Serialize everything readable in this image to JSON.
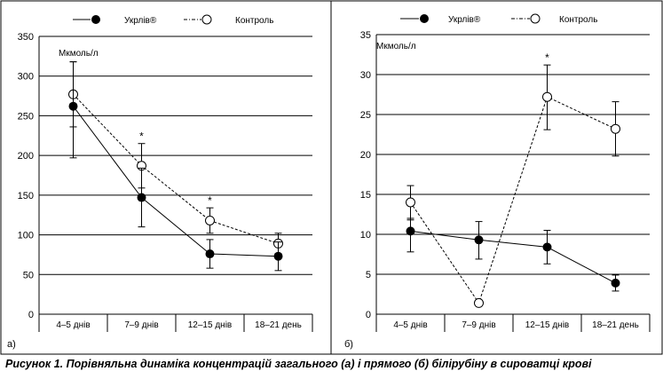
{
  "caption": "Рисунок 1. Порівняльна динаміка концентрацій загального (а) і прямого (б) білірубіну в сироватці крові",
  "legend": {
    "series1": "Укрлів®",
    "series2": "Контроль"
  },
  "chart_data": [
    {
      "type": "line",
      "panel_label": "а)",
      "unit_label": "Мкмоль/л",
      "categories": [
        "4–5 днів",
        "7–9 днів",
        "12–15 днів",
        "18–21 день"
      ],
      "ylim": [
        0,
        350
      ],
      "yticks": [
        0,
        50,
        100,
        150,
        200,
        250,
        300,
        350
      ],
      "grid": true,
      "legend_position": "top",
      "series": [
        {
          "name": "Укрлів®",
          "marker": "filled",
          "line": "solid",
          "values": [
            262,
            147,
            76,
            73
          ],
          "err_low": [
            197,
            110,
            58,
            55
          ],
          "err_high": [
            318,
            184,
            94,
            91
          ]
        },
        {
          "name": "Контроль",
          "marker": "open",
          "line": "dashed",
          "values": [
            277,
            187,
            118,
            89
          ],
          "err_low": [
            236,
            159,
            102,
            76
          ],
          "err_high": [
            318,
            215,
            134,
            102
          ]
        }
      ],
      "significance": [
        {
          "category_index": 1,
          "value": 215,
          "label": "*"
        },
        {
          "category_index": 2,
          "value": 134,
          "label": "*"
        }
      ]
    },
    {
      "type": "line",
      "panel_label": "б)",
      "unit_label": "Мкмоль/л",
      "categories": [
        "4–5 днів",
        "7–9 днів",
        "12–15 днів",
        "18–21 день"
      ],
      "ylim": [
        0,
        35
      ],
      "yticks": [
        0,
        5,
        10,
        15,
        20,
        25,
        30,
        35
      ],
      "grid": true,
      "legend_position": "top",
      "series": [
        {
          "name": "Укрлів®",
          "marker": "filled",
          "line": "solid",
          "values": [
            10.4,
            9.3,
            8.4,
            3.9
          ],
          "err_low": [
            7.8,
            6.9,
            6.3,
            2.9
          ],
          "err_high": [
            12.0,
            11.6,
            10.5,
            4.9
          ]
        },
        {
          "name": "Контроль",
          "marker": "open",
          "line": "dashed",
          "values": [
            14.0,
            1.4,
            27.2,
            23.2
          ],
          "err_low": [
            11.8,
            null,
            23.1,
            19.8
          ],
          "err_high": [
            16.1,
            null,
            31.2,
            26.6
          ]
        }
      ],
      "significance": [
        {
          "category_index": 2,
          "value": 31.2,
          "label": "*"
        }
      ]
    }
  ],
  "colors": {
    "ink": "#000000",
    "background": "#ffffff"
  }
}
